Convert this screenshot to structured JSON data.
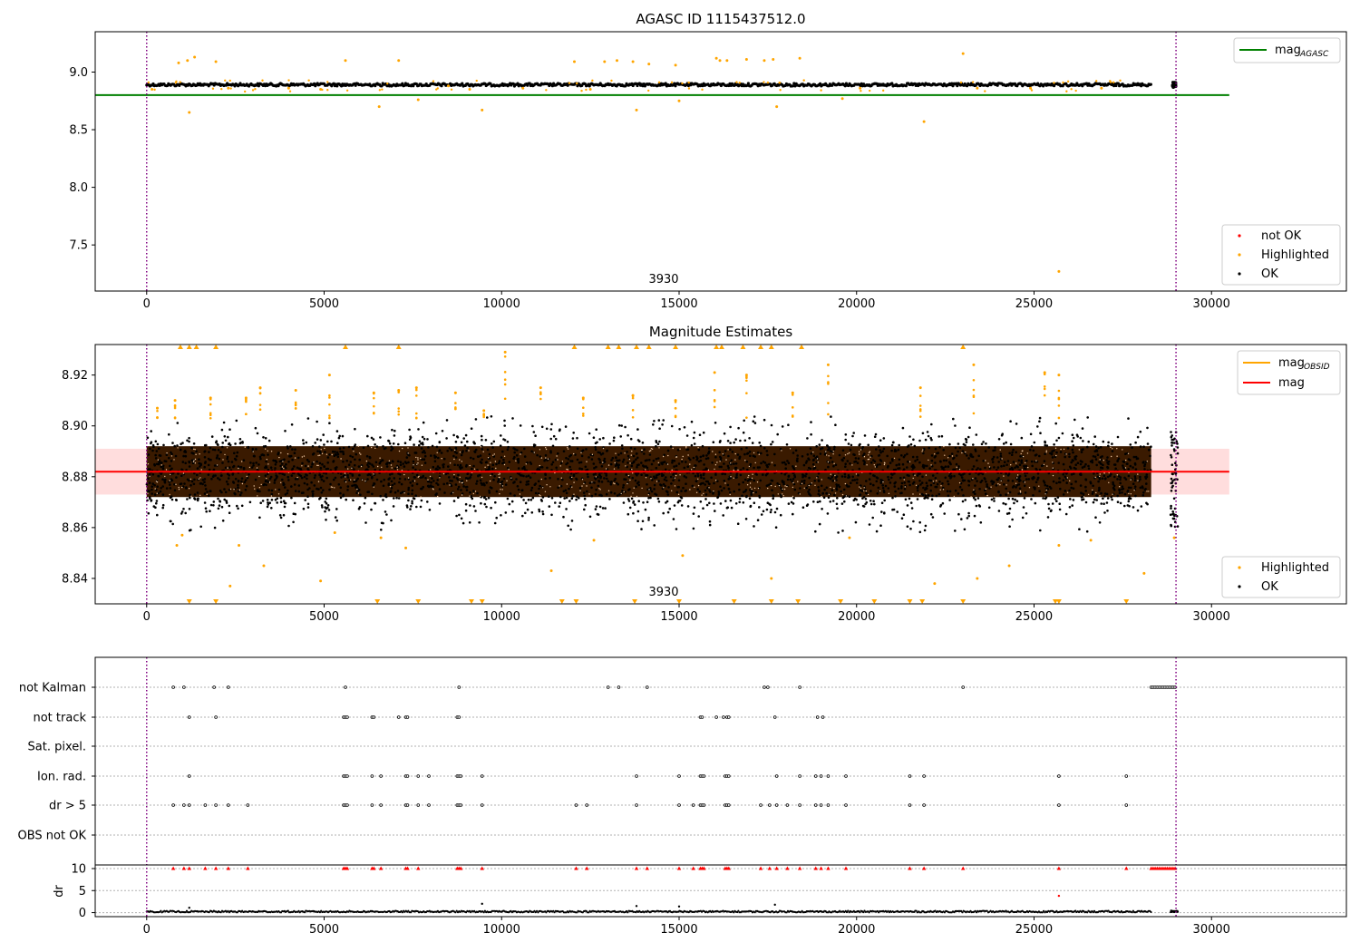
{
  "figure": {
    "title": "AGASC ID 1115437512.0",
    "marker_label": "3930"
  },
  "colors": {
    "ok": "#000000",
    "highlighted": "#ffa500",
    "not_ok": "#ff0000",
    "mag_agasc_line": "#008000",
    "mag_line": "#ff0000",
    "mag_band": "#ffb3b3",
    "mag_obsid": "#ffa500",
    "vline": "#800080",
    "grid": "#b0b0b0",
    "mag_obsid_band": "#3a1a00"
  },
  "chart_data": [
    {
      "type": "scatter",
      "title": "AGASC ID 1115437512.0",
      "xlim": [
        -1450,
        33800
      ],
      "ylim": [
        7.1,
        9.35
      ],
      "x_ticks": [
        0,
        5000,
        10000,
        15000,
        20000,
        25000,
        30000
      ],
      "y_ticks": [
        7.5,
        8.0,
        8.5,
        9.0
      ],
      "y_tick_labels": [
        "7.5",
        "8.0",
        "8.5",
        "9.0"
      ],
      "mag_agasc": 8.8,
      "mag_agasc_xrange": [
        -1450,
        30500
      ],
      "ok_band": [
        8.87,
        8.91
      ],
      "ok_xrange": [
        0,
        28300
      ],
      "ok_cluster": {
        "x": [
          28900,
          29000
        ],
        "y": [
          8.87,
          8.91
        ]
      },
      "highlighted_points": [
        {
          "x": 150,
          "y": 8.85
        },
        {
          "x": 900,
          "y": 9.08
        },
        {
          "x": 1150,
          "y": 9.1
        },
        {
          "x": 1200,
          "y": 8.65
        },
        {
          "x": 1350,
          "y": 9.13
        },
        {
          "x": 1950,
          "y": 9.09
        },
        {
          "x": 2300,
          "y": 8.86
        },
        {
          "x": 4000,
          "y": 8.86
        },
        {
          "x": 4900,
          "y": 8.85
        },
        {
          "x": 5600,
          "y": 9.1
        },
        {
          "x": 6550,
          "y": 8.7
        },
        {
          "x": 7100,
          "y": 9.1
        },
        {
          "x": 7650,
          "y": 8.76
        },
        {
          "x": 8500,
          "y": 8.88
        },
        {
          "x": 9100,
          "y": 8.85
        },
        {
          "x": 9450,
          "y": 8.67
        },
        {
          "x": 10600,
          "y": 8.86
        },
        {
          "x": 12050,
          "y": 9.09
        },
        {
          "x": 12500,
          "y": 8.85
        },
        {
          "x": 12900,
          "y": 9.09
        },
        {
          "x": 13250,
          "y": 9.1
        },
        {
          "x": 13700,
          "y": 9.09
        },
        {
          "x": 13800,
          "y": 8.67
        },
        {
          "x": 14150,
          "y": 9.07
        },
        {
          "x": 14900,
          "y": 9.06
        },
        {
          "x": 15000,
          "y": 8.75
        },
        {
          "x": 16050,
          "y": 9.12
        },
        {
          "x": 16150,
          "y": 9.1
        },
        {
          "x": 16350,
          "y": 9.1
        },
        {
          "x": 16900,
          "y": 9.11
        },
        {
          "x": 17400,
          "y": 9.1
        },
        {
          "x": 17650,
          "y": 9.11
        },
        {
          "x": 17750,
          "y": 8.7
        },
        {
          "x": 18400,
          "y": 9.12
        },
        {
          "x": 19600,
          "y": 8.77
        },
        {
          "x": 20100,
          "y": 8.86
        },
        {
          "x": 21900,
          "y": 8.57
        },
        {
          "x": 23000,
          "y": 9.16
        },
        {
          "x": 23400,
          "y": 8.86
        },
        {
          "x": 24900,
          "y": 8.86
        },
        {
          "x": 25700,
          "y": 7.27
        },
        {
          "x": 26900,
          "y": 8.86
        }
      ],
      "vlines": [
        0,
        29000
      ],
      "legend_line": [
        "mag",
        "AGASC"
      ],
      "legend_points": [
        "not OK",
        "Highlighted",
        "OK"
      ]
    },
    {
      "type": "scatter",
      "title": "Magnitude Estimates",
      "xlim": [
        -1450,
        33800
      ],
      "ylim": [
        8.83,
        8.932
      ],
      "x_ticks": [
        0,
        5000,
        10000,
        15000,
        20000,
        25000,
        30000
      ],
      "y_ticks": [
        8.84,
        8.86,
        8.88,
        8.9,
        8.92
      ],
      "y_tick_labels": [
        "8.84",
        "8.86",
        "8.88",
        "8.90",
        "8.92"
      ],
      "mag": 8.882,
      "mag_band": [
        8.873,
        8.891
      ],
      "mag_xrange": [
        -1450,
        30500
      ],
      "ok_core": [
        8.872,
        8.892
      ],
      "ok_scatter": [
        8.858,
        8.904
      ],
      "ok_xrange": [
        0,
        28300
      ],
      "ok_cluster": {
        "x": [
          28850,
          29050
        ],
        "y": [
          8.86,
          8.898
        ]
      },
      "highlighted_points": [
        {
          "x": 300,
          "y": 8.907
        },
        {
          "x": 800,
          "y": 8.91
        },
        {
          "x": 850,
          "y": 8.853
        },
        {
          "x": 1000,
          "y": 8.857
        },
        {
          "x": 1800,
          "y": 8.911
        },
        {
          "x": 2350,
          "y": 8.837
        },
        {
          "x": 2600,
          "y": 8.853
        },
        {
          "x": 2800,
          "y": 8.911
        },
        {
          "x": 3200,
          "y": 8.915
        },
        {
          "x": 3300,
          "y": 8.845
        },
        {
          "x": 4200,
          "y": 8.914
        },
        {
          "x": 4900,
          "y": 8.839
        },
        {
          "x": 5150,
          "y": 8.92
        },
        {
          "x": 5300,
          "y": 8.858
        },
        {
          "x": 6400,
          "y": 8.913
        },
        {
          "x": 6600,
          "y": 8.856
        },
        {
          "x": 7100,
          "y": 8.914
        },
        {
          "x": 7300,
          "y": 8.852
        },
        {
          "x": 7600,
          "y": 8.915
        },
        {
          "x": 8700,
          "y": 8.913
        },
        {
          "x": 9500,
          "y": 8.906
        },
        {
          "x": 10100,
          "y": 8.929
        },
        {
          "x": 11100,
          "y": 8.915
        },
        {
          "x": 11400,
          "y": 8.843
        },
        {
          "x": 12300,
          "y": 8.911
        },
        {
          "x": 12600,
          "y": 8.855
        },
        {
          "x": 13700,
          "y": 8.912
        },
        {
          "x": 14900,
          "y": 8.91
        },
        {
          "x": 15100,
          "y": 8.849
        },
        {
          "x": 16000,
          "y": 8.921
        },
        {
          "x": 16900,
          "y": 8.92
        },
        {
          "x": 17600,
          "y": 8.84
        },
        {
          "x": 18200,
          "y": 8.913
        },
        {
          "x": 19200,
          "y": 8.924
        },
        {
          "x": 19800,
          "y": 8.856
        },
        {
          "x": 21800,
          "y": 8.915
        },
        {
          "x": 22200,
          "y": 8.838
        },
        {
          "x": 23300,
          "y": 8.924
        },
        {
          "x": 23400,
          "y": 8.84
        },
        {
          "x": 24300,
          "y": 8.845
        },
        {
          "x": 25300,
          "y": 8.921
        },
        {
          "x": 25700,
          "y": 8.92
        },
        {
          "x": 25700,
          "y": 8.853
        },
        {
          "x": 26600,
          "y": 8.855
        },
        {
          "x": 28100,
          "y": 8.842
        },
        {
          "x": 28950,
          "y": 8.856
        }
      ],
      "upper_triangles_x": [
        950,
        1200,
        1400,
        1950,
        5600,
        7100,
        12050,
        13000,
        13300,
        13800,
        14150,
        14900,
        16050,
        16200,
        16800,
        17300,
        17600,
        18450,
        23000
      ],
      "lower_triangles_x": [
        1200,
        1950,
        6500,
        7650,
        9150,
        9450,
        11700,
        12100,
        13750,
        15000,
        16550,
        17600,
        18350,
        19550,
        20500,
        21500,
        21850,
        23000,
        25600,
        25700,
        27600
      ],
      "vlines": [
        0,
        29000
      ],
      "legend_lines": [
        [
          "mag",
          "OBSID"
        ],
        [
          "mag",
          ""
        ]
      ],
      "legend_points": [
        "Highlighted",
        "OK"
      ]
    },
    {
      "type": "scatter",
      "flags": [
        "not Kalman",
        "not track",
        "Sat. pixel.",
        "Ion. rad.",
        "dr > 5",
        "OBS not OK"
      ],
      "flag_points": {
        "not Kalman": [
          750,
          1050,
          1900,
          2300,
          5600,
          8800,
          13000,
          13300,
          14100,
          17400,
          17500,
          18400,
          23000
        ],
        "not track": [
          1200,
          1950,
          5550,
          5600,
          5650,
          6350,
          6400,
          7100,
          7300,
          7350,
          8750,
          8800,
          15600,
          15650,
          16050,
          16250,
          16350,
          16400,
          17700,
          18900,
          19050
        ],
        "Sat. pixel.": [],
        "Ion. rad.": [
          1200,
          5550,
          5600,
          5650,
          6350,
          6600,
          7300,
          7350,
          7650,
          7950,
          8750,
          8800,
          8850,
          9450,
          13800,
          15000,
          15600,
          15650,
          15700,
          16300,
          16350,
          16400,
          17750,
          18400,
          18850,
          19000,
          19200,
          19700,
          21500,
          21900,
          25700,
          27600
        ],
        "dr > 5": [
          750,
          1050,
          1200,
          1650,
          1950,
          2300,
          2850,
          5550,
          5600,
          5650,
          6350,
          6600,
          7300,
          7350,
          7650,
          7950,
          8750,
          8800,
          8850,
          9450,
          12100,
          12400,
          13800,
          15000,
          15400,
          15600,
          15650,
          15700,
          16300,
          16350,
          16400,
          17300,
          17550,
          17750,
          18050,
          18400,
          18850,
          19000,
          19200,
          19700,
          21500,
          21900,
          25700,
          27600
        ],
        "OBS not OK": []
      },
      "kalman_segment": [
        28300,
        29000
      ],
      "dr_ylim": [
        -0.5,
        10.2
      ],
      "dr_ticks": [
        0,
        5,
        10
      ],
      "dr_label": "dr",
      "dr_high_x": [
        750,
        1050,
        1200,
        1650,
        1950,
        2300,
        2850,
        5550,
        5600,
        5650,
        6350,
        6400,
        6600,
        7300,
        7350,
        7650,
        8750,
        8800,
        8850,
        9450,
        12100,
        12400,
        13800,
        14100,
        15000,
        15400,
        15600,
        15650,
        15700,
        16300,
        16350,
        16400,
        17300,
        17550,
        17750,
        18050,
        18400,
        18850,
        19000,
        19200,
        19700,
        21500,
        21900,
        23000,
        25700,
        27600
      ],
      "dr_high_segment": [
        28300,
        29000
      ],
      "dr_mid_points": [
        {
          "x": 9450,
          "y": 2.0
        },
        {
          "x": 13800,
          "y": 1.5
        },
        {
          "x": 15000,
          "y": 1.4
        },
        {
          "x": 17700,
          "y": 1.8
        },
        {
          "x": 25700,
          "y": 3.8
        },
        {
          "x": 1200,
          "y": 1.1
        }
      ],
      "dr_base_xrange": [
        0,
        28300
      ],
      "dr_base_cluster": [
        28850,
        29050
      ],
      "x_ticks": [
        0,
        5000,
        10000,
        15000,
        20000,
        25000,
        30000
      ],
      "xlim": [
        -1450,
        33800
      ],
      "vlines": [
        0,
        29000
      ]
    }
  ]
}
